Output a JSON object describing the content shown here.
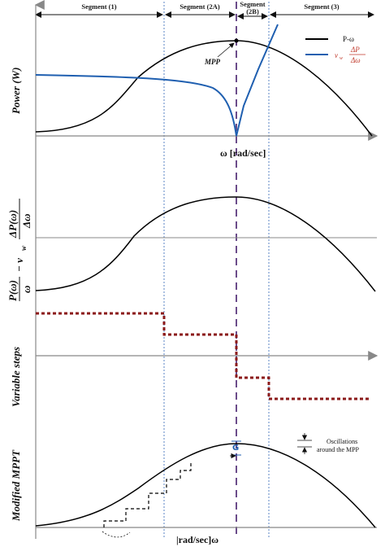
{
  "segments": {
    "seg1": "Segment (1)",
    "seg2a": "Segment (2A)",
    "seg2b_line1": "Segment",
    "seg2b_line2": "(2B)",
    "seg3": "Segment (3)"
  },
  "panel1": {
    "ylabel": "Power (W)",
    "xlabel": "ω [rad/sec]",
    "mpp_label": "MPP",
    "legend": {
      "series1": "P-ω",
      "series2_v": "v",
      "series2_sub": "w",
      "series2_num": "ΔP",
      "series2_den": "Δω"
    }
  },
  "panel2": {
    "ylabel_num1": "P(ω)",
    "ylabel_den1": "ω",
    "ylabel_mid": "− v",
    "ylabel_sub": "w",
    "ylabel_num2": "ΔP(ω)",
    "ylabel_den2": "Δω"
  },
  "panel3": {
    "ylabel": "Variable steps"
  },
  "panel4": {
    "ylabel": "Modified MPPT",
    "xlabel": "|rad/sec]ω",
    "osc_line1": "Oscillations",
    "osc_line2": "around the MPP"
  },
  "colors": {
    "black_curve": "#000000",
    "blue_curve": "#1f5fb0",
    "red_dotted": "#8b1a1a",
    "purple_dashed": "#6b4c8a",
    "segment_dotted": "#5b86c6",
    "axis": "#888888"
  }
}
